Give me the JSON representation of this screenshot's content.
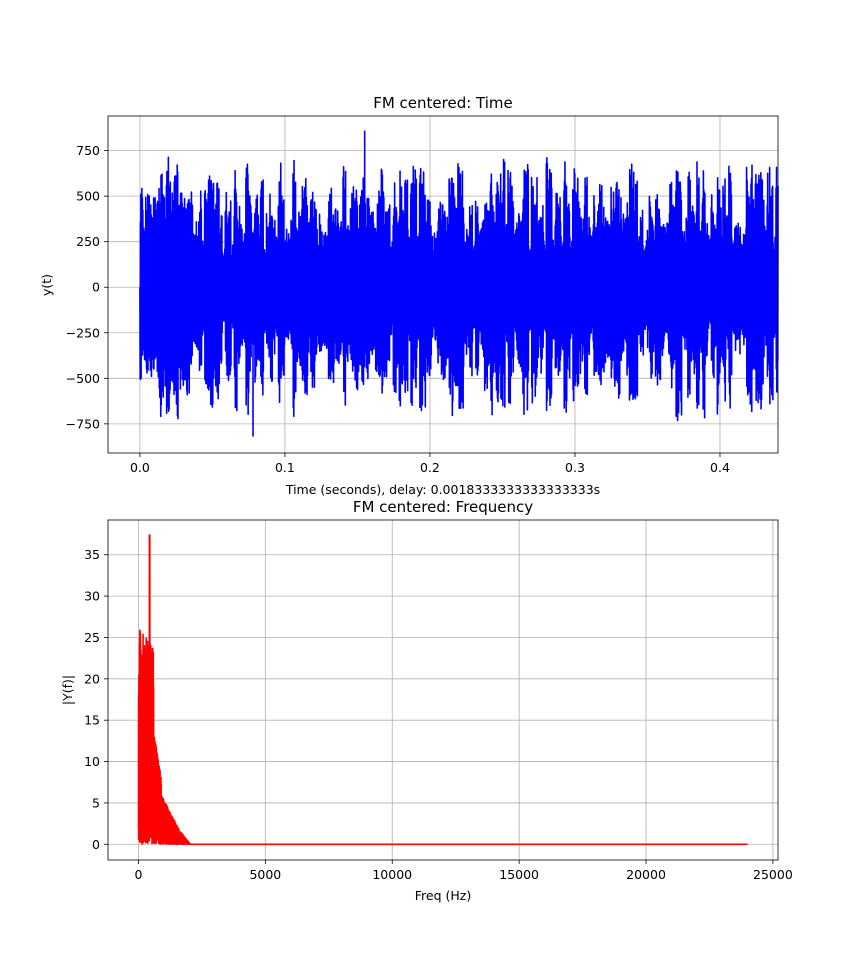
{
  "chart_data": [
    {
      "type": "line",
      "title": "FM centered: Time",
      "xlabel": "Time (seconds), delay: 0.0018333333333333333s",
      "ylabel": "y(t)",
      "xlim": [
        -0.022,
        0.44
      ],
      "ylim": [
        -910,
        940
      ],
      "xticks": [
        0.0,
        0.1,
        0.2,
        0.3,
        0.4
      ],
      "xtick_labels": [
        "0.0",
        "0.1",
        "0.2",
        "0.3",
        "0.4"
      ],
      "yticks": [
        -750,
        -500,
        -250,
        0,
        250,
        500,
        750
      ],
      "ytick_labels": [
        "−750",
        "−500",
        "−250",
        "0",
        "250",
        "500",
        "750"
      ],
      "grid": true,
      "series": [
        {
          "name": "y(t)",
          "color": "#0000ff",
          "x_start": 0.0,
          "x_end": 0.44,
          "peak_max": 860,
          "peak_min": -820,
          "description_values": "dense FM waveform oscillating roughly between -750 and 750"
        }
      ]
    },
    {
      "type": "line",
      "title": "FM centered: Frequency",
      "xlabel": "Freq (Hz)",
      "ylabel": "|Y(f)|",
      "xlim": [
        -1200,
        25200
      ],
      "ylim": [
        -1.9,
        39.2
      ],
      "xticks": [
        0,
        5000,
        10000,
        15000,
        20000,
        25000
      ],
      "xtick_labels": [
        "0",
        "5000",
        "10000",
        "15000",
        "20000",
        "25000"
      ],
      "yticks": [
        0,
        5,
        10,
        15,
        20,
        25,
        30,
        35
      ],
      "ytick_labels": [
        "0",
        "5",
        "10",
        "15",
        "20",
        "25",
        "30",
        "35"
      ],
      "grid": true,
      "series": [
        {
          "name": "|Y(f)|",
          "color": "#ff0000",
          "x_start": 0,
          "x_end": 24000,
          "peak_freq": 440,
          "peak_value": 37.4,
          "description_values": "spectrum concentrated below ~2000 Hz, near zero above"
        }
      ]
    }
  ]
}
